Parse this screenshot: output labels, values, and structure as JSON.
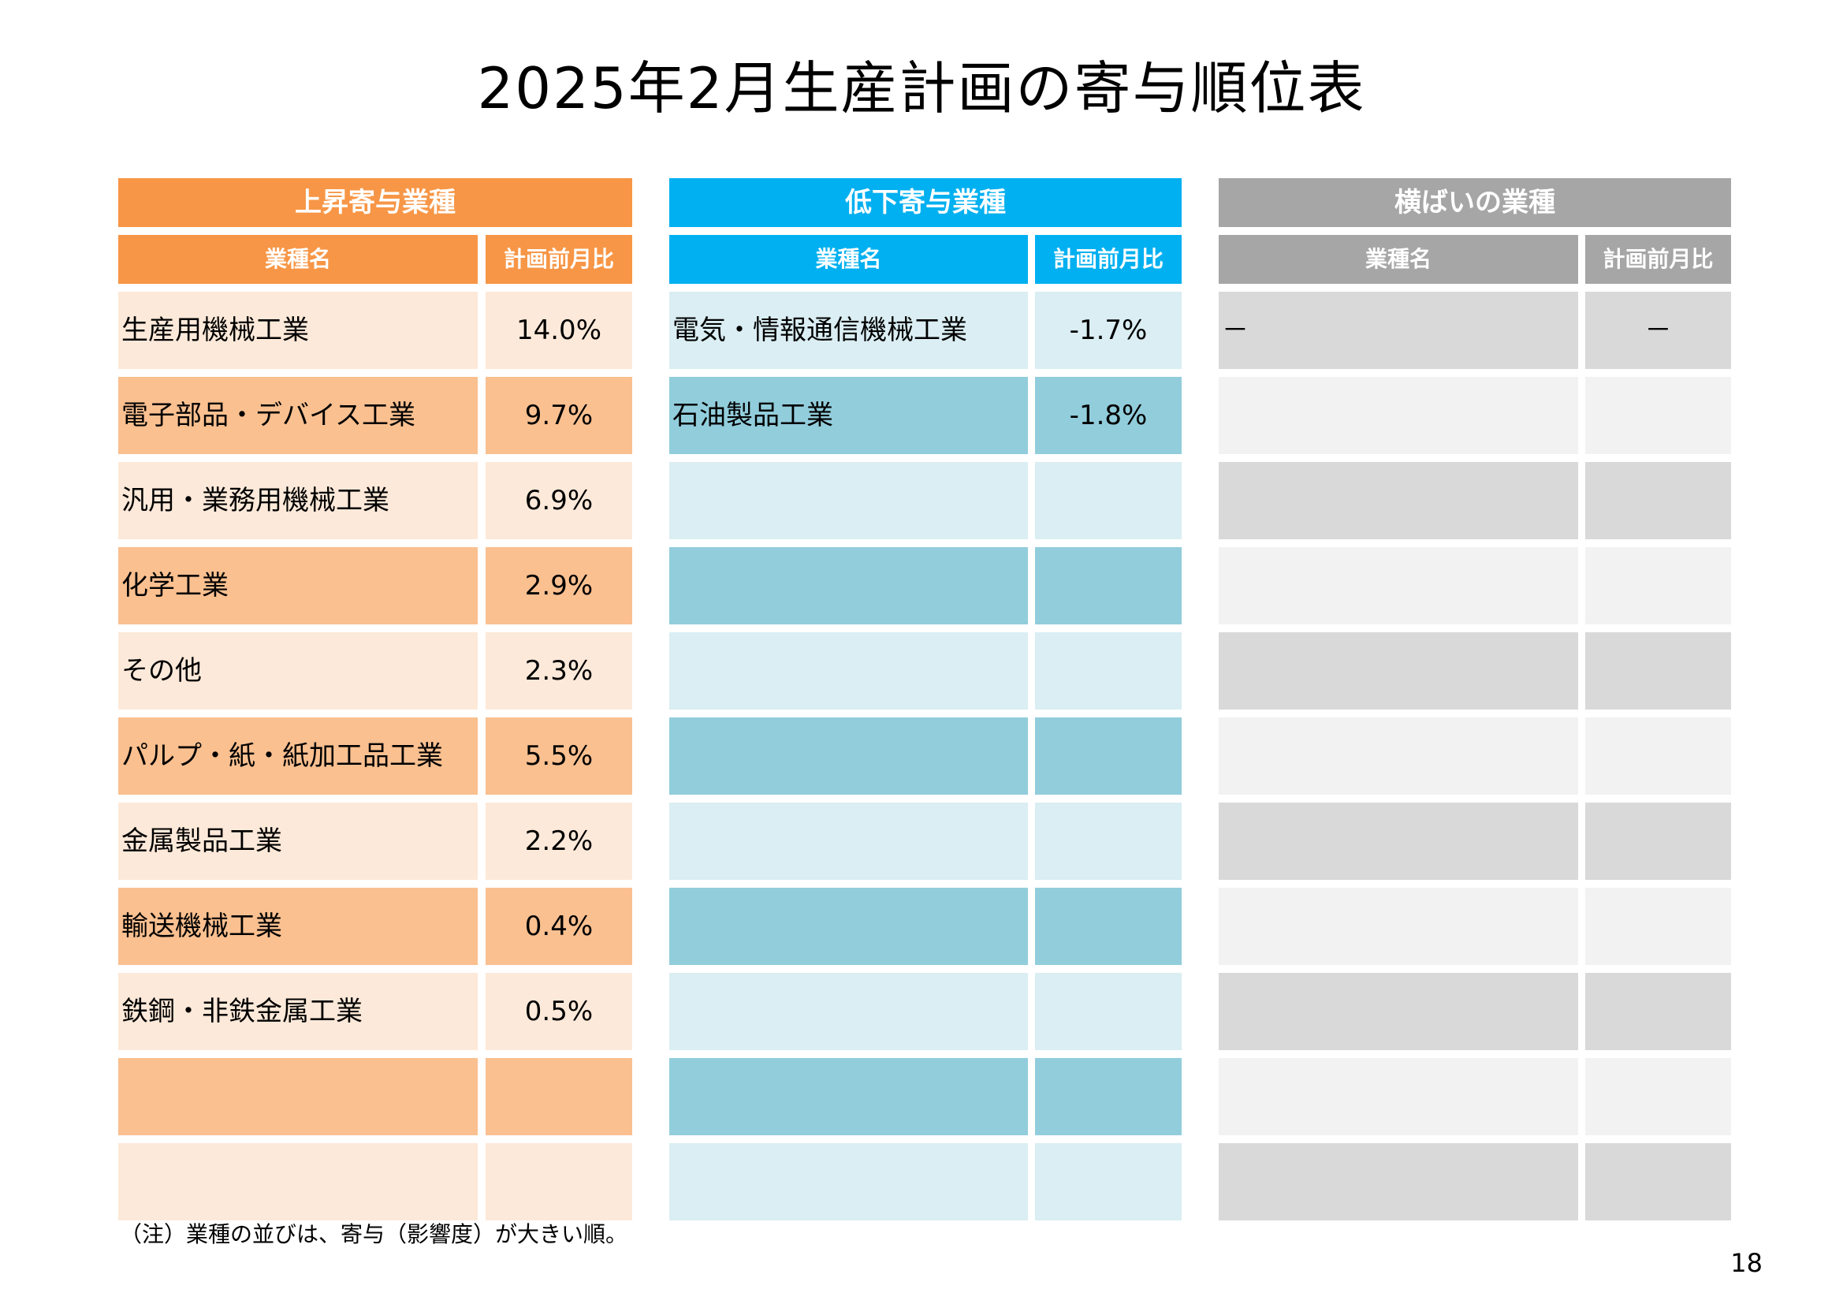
{
  "title": "2025年2月生産計画の寄与順位表",
  "header_name_label": "業種名",
  "header_value_label": "計画前月比",
  "colors": {
    "up_header": "#F79646",
    "up_light": "#FDE9D9",
    "up_dark": "#FAC090",
    "down_header": "#00B0F0",
    "down_light": "#DAEEF3",
    "down_dark": "#92CDDC",
    "flat_header": "#A6A6A6",
    "flat_dark": "#D9D9D9",
    "flat_light": "#F2F2F2"
  },
  "tables": [
    {
      "key": "up",
      "title": "上昇寄与業種",
      "rows": [
        {
          "name": "生産用機械工業",
          "value": "14.0%"
        },
        {
          "name": "電子部品・デバイス工業",
          "value": "9.7%"
        },
        {
          "name": "汎用・業務用機械工業",
          "value": "6.9%"
        },
        {
          "name": "化学工業",
          "value": "2.9%"
        },
        {
          "name": "その他",
          "value": "2.3%"
        },
        {
          "name": "パルプ・紙・紙加工品工業",
          "value": "5.5%"
        },
        {
          "name": "金属製品工業",
          "value": "2.2%"
        },
        {
          "name": "輸送機械工業",
          "value": "0.4%"
        },
        {
          "name": "鉄鋼・非鉄金属工業",
          "value": "0.5%"
        },
        {
          "name": "",
          "value": ""
        },
        {
          "name": "",
          "value": ""
        }
      ]
    },
    {
      "key": "down",
      "title": "低下寄与業種",
      "rows": [
        {
          "name": "電気・情報通信機械工業",
          "value": "-1.7%"
        },
        {
          "name": "石油製品工業",
          "value": "-1.8%"
        },
        {
          "name": "",
          "value": ""
        },
        {
          "name": "",
          "value": ""
        },
        {
          "name": "",
          "value": ""
        },
        {
          "name": "",
          "value": ""
        },
        {
          "name": "",
          "value": ""
        },
        {
          "name": "",
          "value": ""
        },
        {
          "name": "",
          "value": ""
        },
        {
          "name": "",
          "value": ""
        },
        {
          "name": "",
          "value": ""
        }
      ]
    },
    {
      "key": "flat",
      "title": "横ばいの業種",
      "rows": [
        {
          "name": "－",
          "value": "－"
        },
        {
          "name": "",
          "value": ""
        },
        {
          "name": "",
          "value": ""
        },
        {
          "name": "",
          "value": ""
        },
        {
          "name": "",
          "value": ""
        },
        {
          "name": "",
          "value": ""
        },
        {
          "name": "",
          "value": ""
        },
        {
          "name": "",
          "value": ""
        },
        {
          "name": "",
          "value": ""
        },
        {
          "name": "",
          "value": ""
        },
        {
          "name": "",
          "value": ""
        }
      ]
    }
  ],
  "note": "（注）業種の並びは、寄与（影響度）が大きい順。",
  "page_number": "18"
}
